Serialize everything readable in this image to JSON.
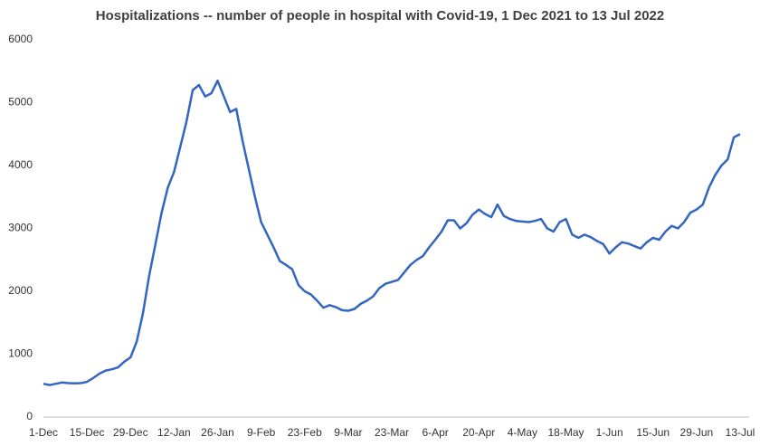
{
  "chart_data": {
    "type": "line",
    "title": "Hospitalizations -- number of people in hospital with Covid-19, 1 Dec 2021 to 13 Jul 2022",
    "categories": [
      "1-Dec",
      null,
      null,
      null,
      null,
      null,
      null,
      "15-Dec",
      null,
      null,
      null,
      null,
      null,
      null,
      "29-Dec",
      null,
      null,
      null,
      null,
      null,
      null,
      "12-Jan",
      null,
      null,
      null,
      null,
      null,
      null,
      "26-Jan",
      null,
      null,
      null,
      null,
      null,
      null,
      "9-Feb",
      null,
      null,
      null,
      null,
      null,
      null,
      "23-Feb",
      null,
      null,
      null,
      null,
      null,
      null,
      "9-Mar",
      null,
      null,
      null,
      null,
      null,
      null,
      "23-Mar",
      null,
      null,
      null,
      null,
      null,
      null,
      "6-Apr",
      null,
      null,
      null,
      null,
      null,
      null,
      "20-Apr",
      null,
      null,
      null,
      null,
      null,
      null,
      "4-May",
      null,
      null,
      null,
      null,
      null,
      null,
      "18-May",
      null,
      null,
      null,
      null,
      null,
      null,
      "1-Jun",
      null,
      null,
      null,
      null,
      null,
      null,
      "15-Jun",
      null,
      null,
      null,
      null,
      null,
      null,
      "29-Jun",
      null,
      null,
      null,
      null,
      null,
      null,
      "13-Jul"
    ],
    "series": [
      {
        "name": "Hospitalizations",
        "color": "#3366c0",
        "values": [
          530,
          510,
          530,
          550,
          540,
          535,
          540,
          560,
          620,
          690,
          740,
          760,
          790,
          880,
          950,
          1200,
          1650,
          2250,
          2750,
          3250,
          3650,
          3900,
          4300,
          4700,
          5200,
          5280,
          5100,
          5150,
          5350,
          5100,
          4850,
          4900,
          4400,
          3950,
          3500,
          3100,
          2900,
          2700,
          2480,
          2420,
          2350,
          2100,
          2000,
          1950,
          1850,
          1740,
          1780,
          1750,
          1700,
          1690,
          1720,
          1800,
          1850,
          1920,
          2050,
          2120,
          2150,
          2180,
          2300,
          2420,
          2500,
          2560,
          2700,
          2820,
          2950,
          3130,
          3130,
          3000,
          3080,
          3220,
          3300,
          3230,
          3180,
          3380,
          3200,
          3150,
          3120,
          3110,
          3100,
          3120,
          3150,
          3000,
          2950,
          3100,
          3150,
          2900,
          2850,
          2900,
          2860,
          2800,
          2750,
          2600,
          2700,
          2780,
          2760,
          2720,
          2680,
          2780,
          2850,
          2820,
          2950,
          3040,
          3000,
          3100,
          3250,
          3300,
          3380,
          3650,
          3850,
          4000,
          4100,
          4450,
          4500
        ]
      }
    ],
    "ylim": [
      0,
      6000
    ],
    "yticks": [
      0,
      1000,
      2000,
      3000,
      4000,
      5000,
      6000
    ],
    "grid": false
  }
}
